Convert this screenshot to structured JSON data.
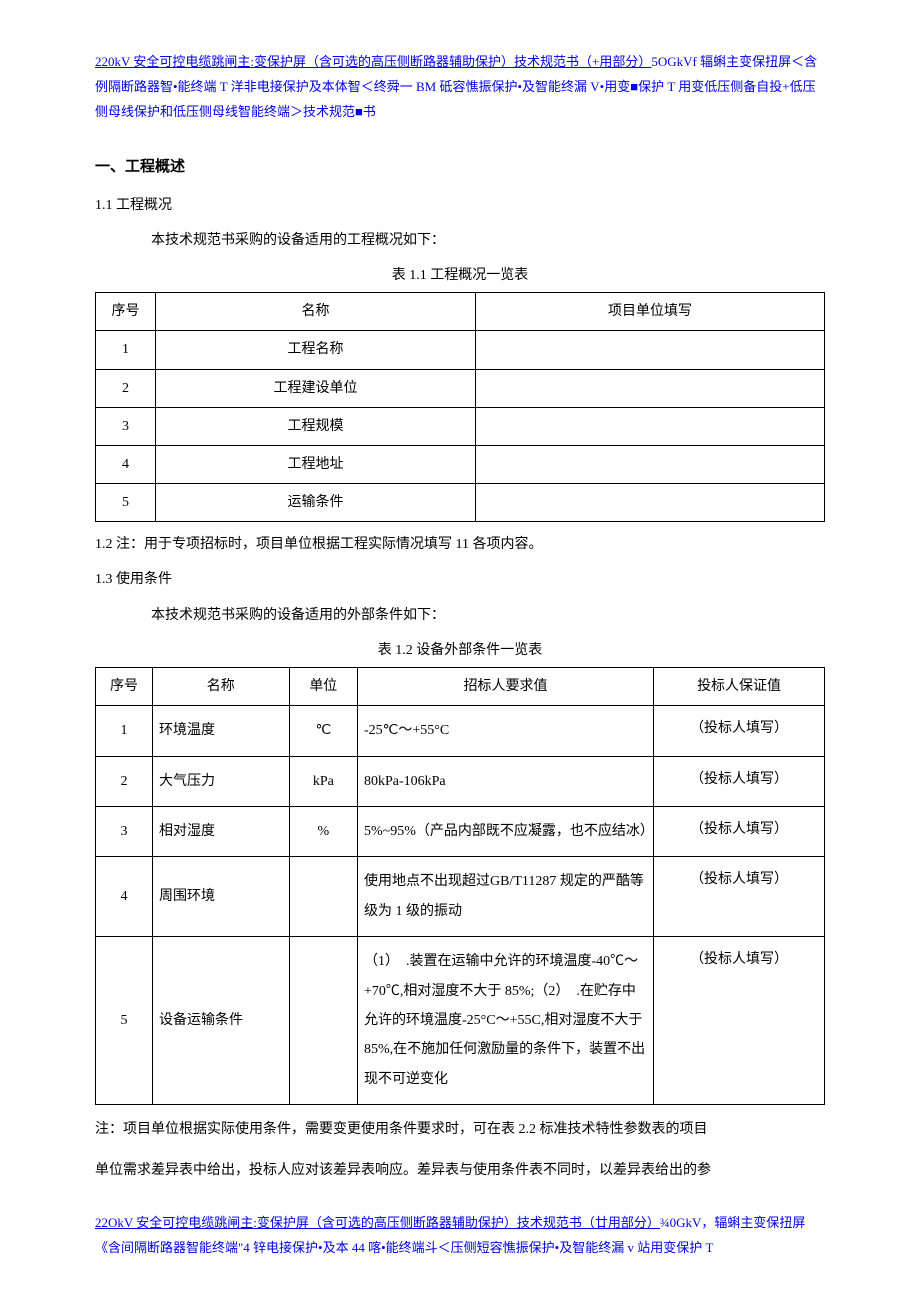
{
  "header": {
    "link_text": "220kV 安全可控电缆跳闸主:变保护屏（含可选的高压侧断路器辅助保护）技术规范书（+用部分）",
    "plain_text": "5OGkVf 辐蝌主变保扭屏＜含例隔断路器智•能终端 T 洋非电接保护及本体智＜终舜一 BM 砥容憔振保护•及智能终漏 V•用变■保护 T 用变低压侧备自投+低压侧母线保护和低压侧母线智能终端＞技术规范■书"
  },
  "footer": {
    "link_text": "22OkV 安全可控电缆跳闸主:变保护屏（含可选的高压侧断路器辅助保护）技术规范书（廿用部分）",
    "plain_text": "¾0GkV，辐蝌主变保扭屏《含间隔断路器智能终端\"4 锌电接保护•及本 44 喀•能终端斗＜压侧短容憔振保护•及智能终漏 v 站用变保护 T"
  },
  "section_heading": "一、工程概述",
  "subsections": {
    "s1_1": "1.1  工程概况",
    "s1_1_text": "本技术规范书采购的设备适用的工程概况如下：",
    "s1_2": "1.2  注：用于专项招标时，项目单位根据工程实际情况填写 11 各项内容。",
    "s1_3": "1.3  使用条件",
    "s1_3_text": "本技术规范书采购的设备适用的外部条件如下："
  },
  "table1": {
    "caption": "表 1.1 工程概况一览表",
    "headers": [
      "序号",
      "名称",
      "项目单位填写"
    ],
    "rows": [
      [
        "1",
        "工程名称",
        ""
      ],
      [
        "2",
        "工程建设单位",
        ""
      ],
      [
        "3",
        "工程规模",
        ""
      ],
      [
        "4",
        "工程地址",
        ""
      ],
      [
        "5",
        "运输条件",
        ""
      ]
    ]
  },
  "table2": {
    "caption": "表 1.2 设备外部条件一览表",
    "headers": [
      "序号",
      "名称",
      "单位",
      "招标人要求值",
      "投标人保证值"
    ],
    "rows": [
      {
        "idx": "1",
        "name": "环境温度",
        "unit": "℃",
        "req": "-25℃～+55°C",
        "bid": "（投标人填写）"
      },
      {
        "idx": "2",
        "name": "大气压力",
        "unit": "kPa",
        "req": "80kPa-106kPa",
        "bid": "（投标人填写）"
      },
      {
        "idx": "3",
        "name": "相对湿度",
        "unit": "%",
        "req": "5%~95%（产品内部既不应凝露，也不应结冰）",
        "bid": "（投标人填写）"
      },
      {
        "idx": "4",
        "name": "周围环境",
        "unit": "",
        "req": "使用地点不出现超过GB/T11287 规定的严酷等级为 1 级的振动",
        "bid": "（投标人填写）"
      },
      {
        "idx": "5",
        "name": "设备运输条件",
        "unit": "",
        "req": "（1）　.装置在运输中允许的环境温度-40℃～+70℃,相对湿度不大于 85%;（2）　.在贮存中允许的环境温度-25°C～+55C,相对湿度不大于 85%,在不施加任何激励量的条件下，装置不出现不可逆变化",
        "bid": "（投标人填写）"
      }
    ]
  },
  "notes": {
    "n1": "注：项目单位根据实际使用条件，需要变更使用条件要求时，可在表 2.2 标准技术特性参数表的项目",
    "n2": "单位需求差异表中给出，投标人应对该差异表响应。差异表与使用条件表不同时，以差异表给出的参"
  },
  "colors": {
    "text": "#000000",
    "link": "#0000ee",
    "border": "#000000",
    "background": "#ffffff"
  }
}
